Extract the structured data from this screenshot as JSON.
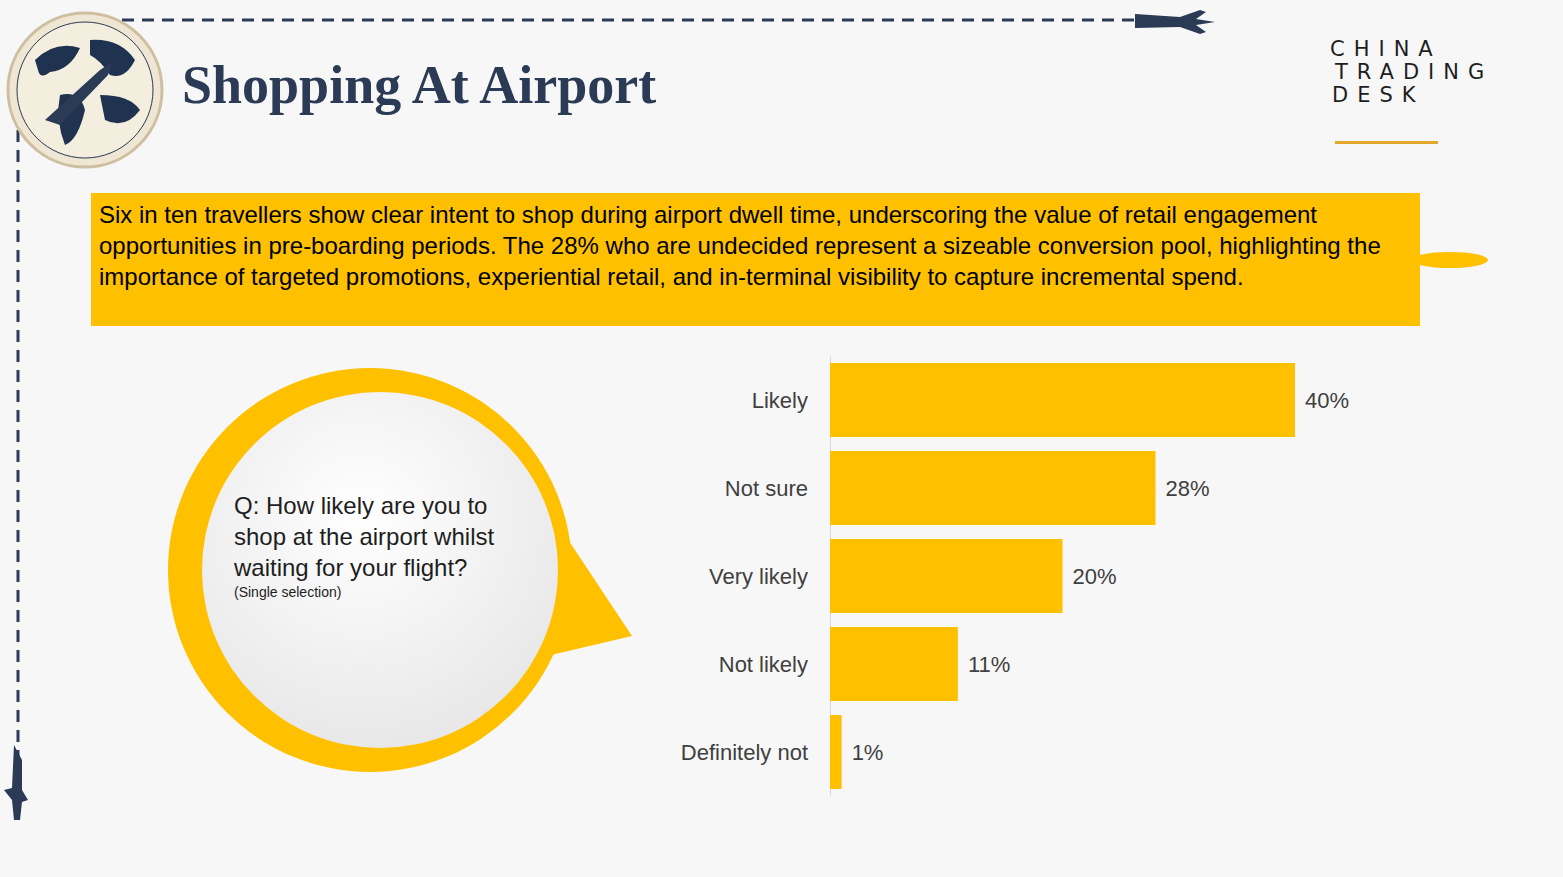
{
  "header": {
    "title": "Shopping At Airport",
    "logo": [
      "CHINA",
      "TRADING",
      "DESK"
    ]
  },
  "summary": "Six in ten travellers show clear intent to shop during airport dwell time, underscoring the value of retail engagement opportunities in pre-boarding periods. The 28% who are undecided represent a sizeable conversion pool, highlighting the importance of targeted promotions, experiential retail, and in-terminal visibility to capture incremental spend.",
  "question": {
    "text": "Q: How likely are you to shop at the airport whilst waiting for your flight?",
    "note": "(Single selection)"
  },
  "chart_data": {
    "type": "bar",
    "orientation": "horizontal",
    "categories": [
      "Likely",
      "Not sure",
      "Very likely",
      "Not likely",
      "Definitely not"
    ],
    "values": [
      40,
      28,
      20,
      11,
      1
    ],
    "value_labels": [
      "40%",
      "28%",
      "20%",
      "11%",
      "1%"
    ],
    "data_labels": true,
    "color": "#ffc000",
    "xlim": [
      0,
      40
    ],
    "tick_labels": "y",
    "grid": false
  }
}
